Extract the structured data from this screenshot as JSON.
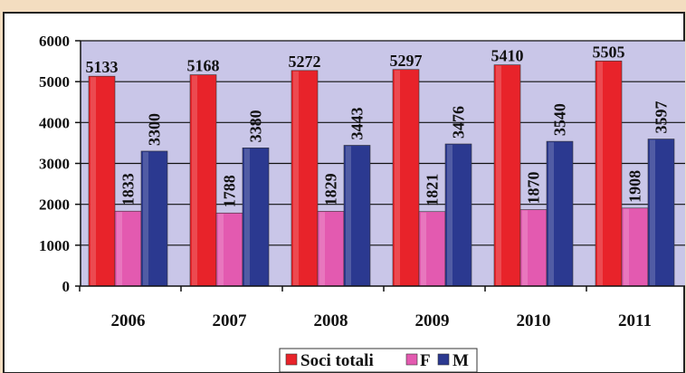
{
  "chart_data": {
    "type": "bar",
    "categories": [
      "2006",
      "2007",
      "2008",
      "2009",
      "2010",
      "2011"
    ],
    "series": [
      {
        "name": "Soci totali",
        "color": "#e8232a",
        "values": [
          5133,
          5168,
          5272,
          5297,
          5410,
          5505
        ]
      },
      {
        "name": "F",
        "color": "#e35ab0",
        "values": [
          1833,
          1788,
          1829,
          1821,
          1870,
          1908
        ]
      },
      {
        "name": "M",
        "color": "#2b3990",
        "values": [
          3300,
          3380,
          3443,
          3476,
          3540,
          3597
        ]
      }
    ],
    "yticks": [
      "0",
      "1000",
      "2000",
      "3000",
      "4000",
      "5000",
      "6000"
    ],
    "ylim": [
      0,
      6000
    ],
    "grid": true,
    "legend_position": "bottom-center",
    "plot_background": "#c9c6e8",
    "page_background": "#f3ddc0"
  }
}
